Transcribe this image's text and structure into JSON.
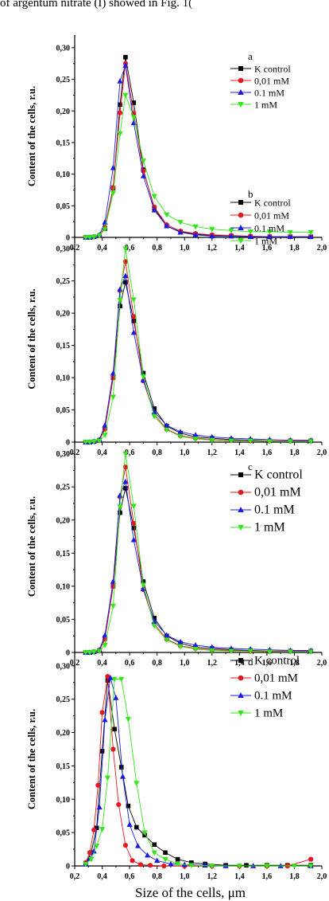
{
  "header_text": "of argentum nitrate (I) showed in Fig. 1(",
  "colors": {
    "K control": "#000000",
    "0,01 mM": "#e8141e",
    "0.1 mM": "#1a1ae6",
    "1 mM": "#33e61a"
  },
  "chart_data": [
    {
      "type": "line",
      "panel": "a",
      "ylabel": "Content of the cells, r.u.",
      "xlabel": "",
      "xlim": [
        0.2,
        2.0
      ],
      "ylim": [
        0,
        0.32
      ],
      "xticks": [
        "0,2",
        "0,4",
        "0,6",
        "0,8",
        "1,0",
        "1,2",
        "1,4",
        "1,6",
        "1,8",
        "2,0"
      ],
      "yticks": [
        "0",
        "0,05",
        "0,10",
        "0,15",
        "0,20",
        "0,25",
        "0,30"
      ],
      "legend": [
        "K control",
        "0,01 mM",
        "0.1 mM",
        "1 mM"
      ],
      "x": [
        0.28,
        0.31,
        0.34,
        0.38,
        0.42,
        0.48,
        0.53,
        0.57,
        0.63,
        0.7,
        0.78,
        0.87,
        0.97,
        1.08,
        1.2,
        1.34,
        1.48,
        1.62,
        1.77,
        1.92
      ],
      "series": [
        {
          "name": "K control",
          "marker": "square",
          "values": [
            0,
            0,
            0.001,
            0.003,
            0.014,
            0.078,
            0.21,
            0.285,
            0.213,
            0.107,
            0.046,
            0.018,
            0.009,
            0.005,
            0.003,
            0.002,
            0.001,
            0.001,
            0.001,
            0.001
          ]
        },
        {
          "name": "0,01 mM",
          "marker": "circle",
          "values": [
            0,
            0,
            0.001,
            0.003,
            0.016,
            0.079,
            0.197,
            0.275,
            0.196,
            0.105,
            0.048,
            0.02,
            0.01,
            0.006,
            0.004,
            0.003,
            0.002,
            0.001,
            0.001,
            0.001
          ]
        },
        {
          "name": "0.1 mM",
          "marker": "triangle-up",
          "values": [
            0,
            0,
            0.001,
            0.004,
            0.024,
            0.11,
            0.247,
            0.272,
            0.181,
            0.097,
            0.043,
            0.018,
            0.008,
            0.004,
            0.002,
            0.002,
            0.001,
            0.001,
            0.001,
            0.001
          ]
        },
        {
          "name": "1 mM",
          "marker": "triangle-down",
          "values": [
            0,
            0,
            0.001,
            0.003,
            0.013,
            0.07,
            0.164,
            0.225,
            0.19,
            0.121,
            0.065,
            0.036,
            0.024,
            0.017,
            0.013,
            0.011,
            0.009,
            0.009,
            0.008,
            0.008
          ]
        }
      ]
    },
    {
      "type": "line",
      "panel": "b",
      "ylabel": "Content of the cells, r.u.",
      "xlabel": "",
      "xlim": [
        0.2,
        2.0
      ],
      "ylim": [
        0,
        0.32
      ],
      "xticks": [
        "0,2",
        "0,4",
        "0,6",
        "0,8",
        "1,0",
        "1,2",
        "1,4",
        "1,6",
        "1,8",
        "2,0"
      ],
      "yticks": [
        "0",
        "0,05",
        "0,10",
        "0,15",
        "0,20",
        "0,25",
        "0,30"
      ],
      "legend": [
        "K control",
        "0,01 mM",
        "0.1 mM",
        "1 mM"
      ],
      "x": [
        0.28,
        0.31,
        0.34,
        0.38,
        0.42,
        0.48,
        0.53,
        0.57,
        0.63,
        0.7,
        0.78,
        0.87,
        0.97,
        1.08,
        1.2,
        1.34,
        1.48,
        1.62,
        1.77,
        1.92
      ],
      "series": [
        {
          "name": "K control",
          "marker": "square",
          "values": [
            0,
            0,
            0.001,
            0.003,
            0.022,
            0.1,
            0.211,
            0.248,
            0.188,
            0.107,
            0.052,
            0.025,
            0.014,
            0.008,
            0.006,
            0.004,
            0.003,
            0.002,
            0.002,
            0.002
          ]
        },
        {
          "name": "0,01 mM",
          "marker": "circle",
          "values": [
            0,
            0,
            0.001,
            0.003,
            0.02,
            0.1,
            0.235,
            0.28,
            0.195,
            0.095,
            0.043,
            0.02,
            0.01,
            0.006,
            0.004,
            0.003,
            0.002,
            0.002,
            0.002,
            0.002
          ]
        },
        {
          "name": "0.1 mM",
          "marker": "triangle-up",
          "values": [
            0,
            0,
            0.001,
            0.004,
            0.026,
            0.107,
            0.237,
            0.258,
            0.17,
            0.096,
            0.047,
            0.026,
            0.016,
            0.011,
            0.008,
            0.006,
            0.005,
            0.004,
            0.003,
            0.003
          ]
        },
        {
          "name": "1 mM",
          "marker": "triangle-down",
          "values": [
            0,
            0,
            0.001,
            0.002,
            0.011,
            0.07,
            0.22,
            0.3,
            0.221,
            0.102,
            0.04,
            0.019,
            0.009,
            0.005,
            0.003,
            0.002,
            0.002,
            0.001,
            0.001,
            0.001
          ]
        }
      ]
    },
    {
      "type": "line",
      "panel": "c",
      "ylabel": "Content of the cells, r.u.",
      "xlabel": "",
      "xlim": [
        0.2,
        2.0
      ],
      "ylim": [
        0,
        0.32
      ],
      "xticks": [
        "0,2",
        "0,4",
        "0,6",
        "0,8",
        "1,0",
        "1,2",
        "1,4",
        "1,6",
        "1,8",
        "2,0"
      ],
      "yticks": [
        "0",
        "0,05",
        "0,10",
        "0,15",
        "0,20",
        "0,25",
        "0,30"
      ],
      "legend": [
        "K control",
        "0,01 mM",
        "0.1 mM",
        "1 mM"
      ],
      "x": [
        0.28,
        0.31,
        0.34,
        0.38,
        0.42,
        0.48,
        0.53,
        0.57,
        0.63,
        0.7,
        0.78,
        0.87,
        0.97,
        1.08,
        1.2,
        1.34,
        1.48,
        1.62,
        1.77,
        1.92
      ],
      "series": [
        {
          "name": "K control",
          "marker": "square",
          "values": [
            0,
            0,
            0.001,
            0.003,
            0.022,
            0.1,
            0.211,
            0.248,
            0.188,
            0.107,
            0.052,
            0.025,
            0.014,
            0.008,
            0.006,
            0.004,
            0.003,
            0.002,
            0.002,
            0.002
          ]
        },
        {
          "name": "0,01 mM",
          "marker": "circle",
          "values": [
            0,
            0,
            0.001,
            0.003,
            0.02,
            0.1,
            0.235,
            0.28,
            0.195,
            0.095,
            0.043,
            0.02,
            0.01,
            0.006,
            0.004,
            0.003,
            0.002,
            0.002,
            0.002,
            0.002
          ]
        },
        {
          "name": "0.1 mM",
          "marker": "triangle-up",
          "values": [
            0,
            0,
            0.001,
            0.004,
            0.026,
            0.107,
            0.237,
            0.258,
            0.17,
            0.096,
            0.047,
            0.026,
            0.016,
            0.011,
            0.008,
            0.006,
            0.005,
            0.004,
            0.003,
            0.003
          ]
        },
        {
          "name": "1 mM",
          "marker": "triangle-down",
          "values": [
            0,
            0,
            0.001,
            0.002,
            0.011,
            0.07,
            0.22,
            0.3,
            0.221,
            0.102,
            0.04,
            0.019,
            0.009,
            0.005,
            0.003,
            0.002,
            0.002,
            0.001,
            0.001,
            0.001
          ]
        }
      ]
    },
    {
      "type": "line",
      "panel": "d",
      "ylabel": "Content of the cells, r.u.",
      "xlabel": "Size of the cells, μm",
      "xlim": [
        0.2,
        2.0
      ],
      "ylim": [
        0,
        0.32
      ],
      "xticks": [
        "0,2",
        "0,4",
        "0,6",
        "0,8",
        "1,0",
        "1,2",
        "1,4",
        "1,6",
        "1,8",
        "2,0"
      ],
      "yticks": [
        "0",
        "0,05",
        "0,10",
        "0,15",
        "0,20",
        "0,25",
        "0,30"
      ],
      "legend": [
        "K control",
        "0,01 mM",
        "0.1 mM",
        "1 mM"
      ],
      "series": [
        {
          "name": "K control",
          "marker": "square",
          "x": [
            0.28,
            0.32,
            0.36,
            0.4,
            0.44,
            0.49,
            0.54,
            0.59,
            0.65,
            0.71,
            0.78,
            0.86,
            0.95,
            1.05,
            1.15,
            1.3,
            1.45,
            1.6,
            1.75,
            1.92
          ],
          "values": [
            0.004,
            0.02,
            0.057,
            0.172,
            0.278,
            0.205,
            0.148,
            0.09,
            0.058,
            0.046,
            0.032,
            0.02,
            0.01,
            0.005,
            0.003,
            0.001,
            0.001,
            0.001,
            0.001,
            0.001
          ]
        },
        {
          "name": "0,01 mM",
          "marker": "circle",
          "x": [
            0.28,
            0.31,
            0.34,
            0.37,
            0.4,
            0.44,
            0.48,
            0.52,
            0.57,
            0.62,
            0.68,
            0.75,
            0.85,
            1.0,
            1.2,
            1.4,
            1.6,
            1.75,
            1.92
          ],
          "values": [
            0.005,
            0.02,
            0.054,
            0.121,
            0.23,
            0.284,
            0.175,
            0.092,
            0.031,
            0.008,
            0.002,
            0.001,
            0,
            0,
            0,
            0,
            0,
            0,
            0.01
          ]
        },
        {
          "name": "0.1 mM",
          "marker": "triangle-up",
          "x": [
            0.28,
            0.31,
            0.34,
            0.38,
            0.42,
            0.46,
            0.5,
            0.55,
            0.6,
            0.66,
            0.73,
            0.8,
            0.9,
            1.0,
            1.15,
            1.3,
            1.5,
            1.7,
            1.92
          ],
          "values": [
            0.003,
            0.011,
            0.022,
            0.088,
            0.219,
            0.282,
            0.252,
            0.134,
            0.062,
            0.03,
            0.016,
            0.008,
            0.003,
            0.002,
            0.001,
            0,
            0,
            0,
            0
          ]
        },
        {
          "name": "1 mM",
          "marker": "triangle-down",
          "x": [
            0.28,
            0.32,
            0.36,
            0.4,
            0.44,
            0.49,
            0.54,
            0.59,
            0.65,
            0.71,
            0.78,
            0.86,
            0.95,
            1.05,
            1.2,
            1.4,
            1.6,
            1.8,
            1.92
          ],
          "values": [
            0.003,
            0.01,
            0.03,
            0.055,
            0.132,
            0.28,
            0.28,
            0.22,
            0.124,
            0.05,
            0.02,
            0.01,
            0.003,
            0.001,
            0,
            0,
            0,
            0,
            0
          ]
        }
      ]
    }
  ]
}
